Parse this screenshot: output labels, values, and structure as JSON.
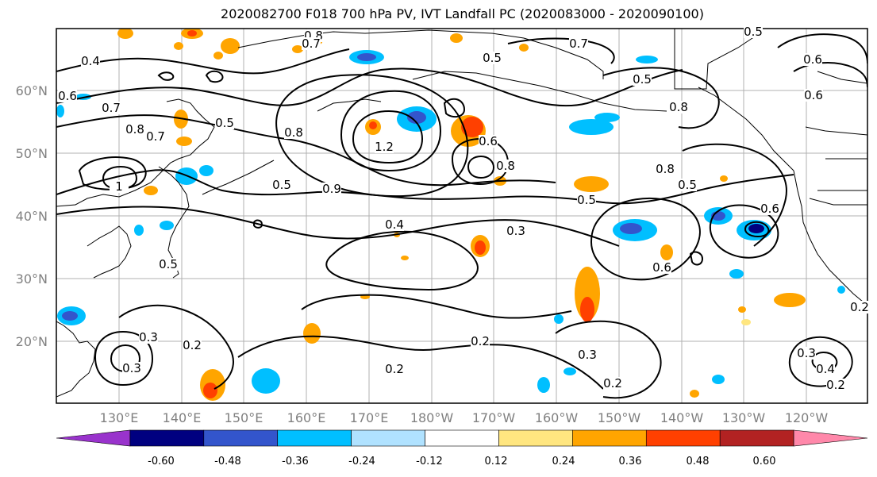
{
  "title": "2020082700 F018 700 hPa PV, IVT Landfall PC (2020083000 - 2020090100)",
  "lat_labels": [
    "20°N",
    "30°N",
    "40°N",
    "50°N",
    "60°N"
  ],
  "lon_labels": [
    "130°E",
    "140°E",
    "150°E",
    "160°E",
    "170°E",
    "180°W",
    "170°W",
    "160°W",
    "150°W",
    "140°W",
    "130°W",
    "120°W"
  ],
  "colorbar": {
    "colors": [
      "#9933cc",
      "#000080",
      "#3355cc",
      "#00bfff",
      "#b0e2ff",
      "#ffffff",
      "#ffe680",
      "#ffa500",
      "#ff4000",
      "#b22222",
      "#ff88aa"
    ],
    "tick_labels": [
      "-0.60",
      "-0.48",
      "-0.36",
      "-0.24",
      "-0.12",
      "0.12",
      "0.24",
      "0.36",
      "0.48",
      "0.60"
    ]
  },
  "contour_labels": [
    "0.8",
    "0.7",
    "0.7",
    "0.5",
    "0.5",
    "0.6",
    "0.7",
    "0.5",
    "0.4",
    "0.6",
    "0.5",
    "0.6",
    "0.8",
    "0.8",
    "0.7",
    "0.8",
    "1.2",
    "0.6",
    "0.8",
    "0.8",
    "1",
    "0.5",
    "0.9",
    "0.5",
    "0.5",
    "0.6",
    "0.5",
    "0.4",
    "0.3",
    "0.6",
    "0.3",
    "0.2",
    "0.2",
    "0.3",
    "0.2",
    "0.2",
    "0.3",
    "0.4",
    "0.2",
    "0.2",
    "0.3"
  ]
}
